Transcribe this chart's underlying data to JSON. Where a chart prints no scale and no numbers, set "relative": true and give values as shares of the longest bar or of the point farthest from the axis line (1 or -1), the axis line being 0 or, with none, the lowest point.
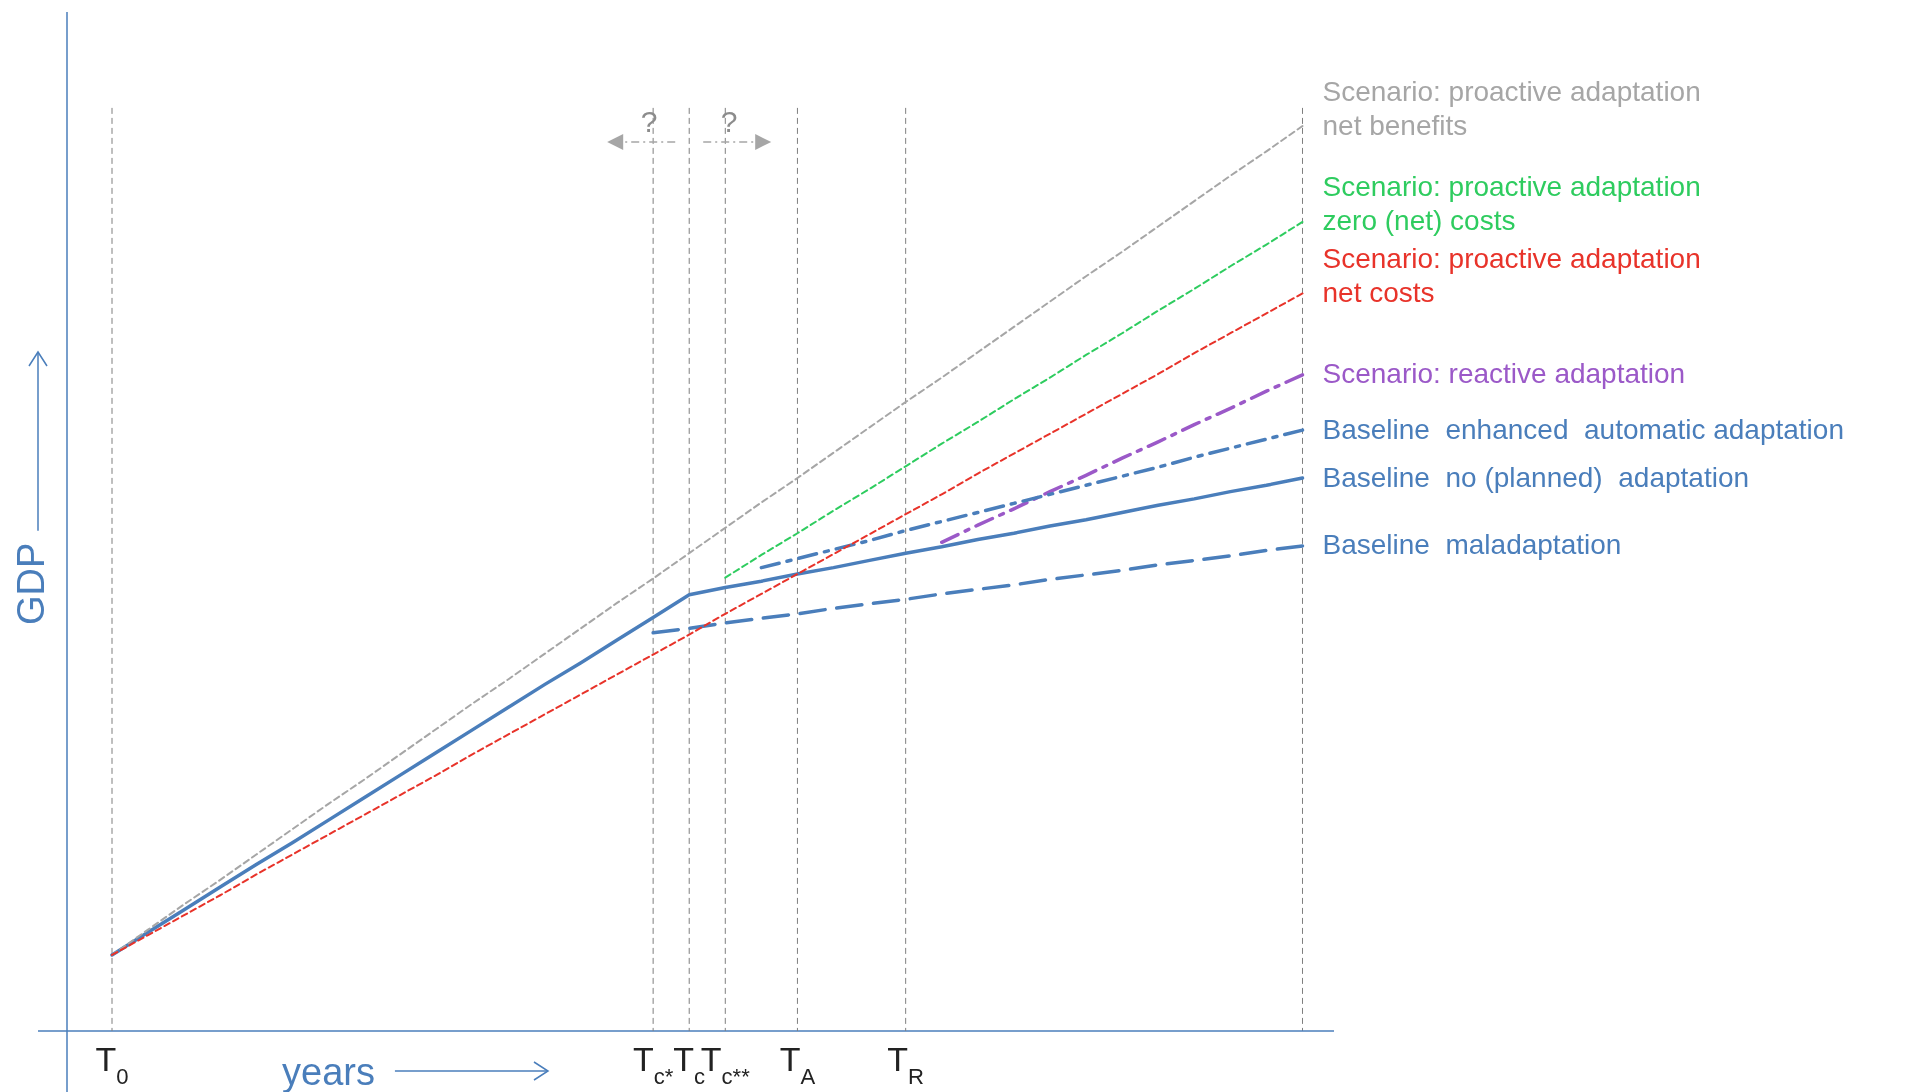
{
  "chart_data": {
    "type": "line",
    "relative": true,
    "xlabel": "years",
    "ylabel": "GDP",
    "categories": [
      "T$_{0}$",
      null,
      null,
      null,
      null,
      null,
      null,
      null,
      null,
      null,
      null,
      null,
      null,
      null,
      null,
      "T$_{c*}$",
      "T$_{c}$",
      "T$_{c**}$",
      null,
      "T$_{A}$",
      null,
      null,
      "T$_{R}$",
      null,
      null,
      null,
      null,
      null,
      null,
      null,
      null,
      null,
      null,
      null
    ],
    "tick_labels": "x",
    "grid": "x",
    "annotations": [
      "?",
      "?"
    ],
    "series": [
      {
        "name": "Scenario: proactive adaptation\nnet benefits",
        "color": "#a6a6a6",
        "line_style": "dotted",
        "values": [
          0.084,
          0.112,
          0.14,
          0.167,
          0.195,
          0.223,
          0.251,
          0.278,
          0.306,
          0.334,
          0.362,
          0.389,
          0.417,
          0.445,
          0.473,
          0.5,
          0.528,
          0.556,
          0.584,
          0.611,
          0.639,
          0.667,
          0.695,
          0.722,
          0.75,
          0.778,
          0.806,
          0.834,
          0.861,
          0.889,
          0.917,
          0.945,
          0.972,
          1.0
        ]
      },
      {
        "name": "Scenario: proactive adaptation\nzero (net) costs",
        "color": "#2ecc5f",
        "line_style": "dotted",
        "values": [
          null,
          null,
          null,
          null,
          null,
          null,
          null,
          null,
          null,
          null,
          null,
          null,
          null,
          null,
          null,
          null,
          null,
          0.501,
          0.526,
          0.55,
          0.575,
          0.599,
          0.624,
          0.649,
          0.673,
          0.698,
          0.722,
          0.747,
          0.771,
          0.796,
          0.82,
          0.845,
          0.869,
          0.894
        ]
      },
      {
        "name": "Scenario: proactive adaptation\nnet costs",
        "color": "#e8332a",
        "line_style": "dotted",
        "values": [
          0.084,
          0.106,
          0.128,
          0.15,
          0.173,
          0.195,
          0.217,
          0.239,
          0.261,
          0.283,
          0.306,
          0.328,
          0.35,
          0.372,
          0.394,
          0.416,
          0.438,
          0.461,
          0.483,
          0.505,
          0.527,
          0.549,
          0.571,
          0.593,
          0.616,
          0.638,
          0.66,
          0.682,
          0.704,
          0.726,
          0.749,
          0.771,
          0.793,
          0.815
        ]
      },
      {
        "name": "Scenario: reactive adaptation",
        "color": "#9b59c8",
        "line_style": "dashdot",
        "values": [
          null,
          null,
          null,
          null,
          null,
          null,
          null,
          null,
          null,
          null,
          null,
          null,
          null,
          null,
          null,
          null,
          null,
          null,
          null,
          null,
          null,
          null,
          null,
          0.54,
          0.559,
          0.577,
          0.596,
          0.614,
          0.633,
          0.651,
          0.67,
          0.688,
          0.707,
          0.725
        ]
      },
      {
        "name": "Baseline  enhanced  automatic adaptation",
        "color": "#4a7ebb",
        "line_style": "dashdot",
        "values": [
          null,
          null,
          null,
          null,
          null,
          null,
          null,
          null,
          null,
          null,
          null,
          null,
          null,
          null,
          null,
          null,
          null,
          null,
          0.512,
          0.522,
          0.532,
          0.542,
          0.553,
          0.563,
          0.573,
          0.583,
          0.593,
          0.603,
          0.613,
          0.623,
          0.634,
          0.644,
          0.654,
          0.664
        ]
      },
      {
        "name": "Baseline  no (planned)  adaptation",
        "color": "#4a7ebb",
        "line_style": "solid",
        "values": [
          0.084,
          0.109,
          0.134,
          0.159,
          0.184,
          0.208,
          0.233,
          0.258,
          0.283,
          0.308,
          0.333,
          0.358,
          0.383,
          0.407,
          0.432,
          0.457,
          0.482,
          0.49,
          0.497,
          0.505,
          0.512,
          0.52,
          0.528,
          0.535,
          0.543,
          0.55,
          0.558,
          0.565,
          0.573,
          0.581,
          0.588,
          0.596,
          0.603,
          0.611
        ]
      },
      {
        "name": "Baseline  maladaptation",
        "color": "#4a7ebb",
        "line_style": "dashed",
        "values": [
          null,
          null,
          null,
          null,
          null,
          null,
          null,
          null,
          null,
          null,
          null,
          null,
          null,
          null,
          null,
          0.44,
          0.445,
          0.451,
          0.456,
          0.461,
          0.467,
          0.472,
          0.477,
          0.483,
          0.488,
          0.493,
          0.499,
          0.504,
          0.509,
          0.515,
          0.52,
          0.525,
          0.531,
          0.536
        ]
      }
    ]
  }
}
